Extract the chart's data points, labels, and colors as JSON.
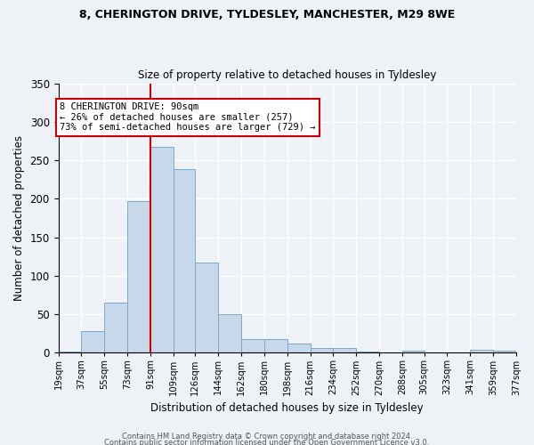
{
  "title1": "8, CHERINGTON DRIVE, TYLDESLEY, MANCHESTER, M29 8WE",
  "title2": "Size of property relative to detached houses in Tyldesley",
  "xlabel": "Distribution of detached houses by size in Tyldesley",
  "ylabel": "Number of detached properties",
  "bar_color": "#c8d8eb",
  "bar_edge_color": "#7aaac8",
  "background_color": "#eef2f7",
  "grid_color": "#ffffff",
  "bins": [
    19,
    37,
    55,
    73,
    91,
    109,
    126,
    144,
    162,
    180,
    198,
    216,
    234,
    252,
    270,
    288,
    305,
    323,
    341,
    359,
    377
  ],
  "counts": [
    2,
    28,
    65,
    197,
    267,
    238,
    117,
    50,
    18,
    18,
    12,
    6,
    6,
    1,
    0,
    3,
    0,
    0,
    4,
    3
  ],
  "tick_labels": [
    "19sqm",
    "37sqm",
    "55sqm",
    "73sqm",
    "91sqm",
    "109sqm",
    "126sqm",
    "144sqm",
    "162sqm",
    "180sqm",
    "198sqm",
    "216sqm",
    "234sqm",
    "252sqm",
    "270sqm",
    "288sqm",
    "305sqm",
    "323sqm",
    "341sqm",
    "359sqm",
    "377sqm"
  ],
  "property_line_x": 91,
  "property_line_color": "#cc0000",
  "annotation_text": "8 CHERINGTON DRIVE: 90sqm\n← 26% of detached houses are smaller (257)\n73% of semi-detached houses are larger (729) →",
  "annotation_box_color": "#ffffff",
  "annotation_box_edge": "#cc0000",
  "ylim": [
    0,
    350
  ],
  "yticks": [
    0,
    50,
    100,
    150,
    200,
    250,
    300,
    350
  ],
  "footer1": "Contains HM Land Registry data © Crown copyright and database right 2024.",
  "footer2": "Contains public sector information licensed under the Open Government Licence v3.0."
}
